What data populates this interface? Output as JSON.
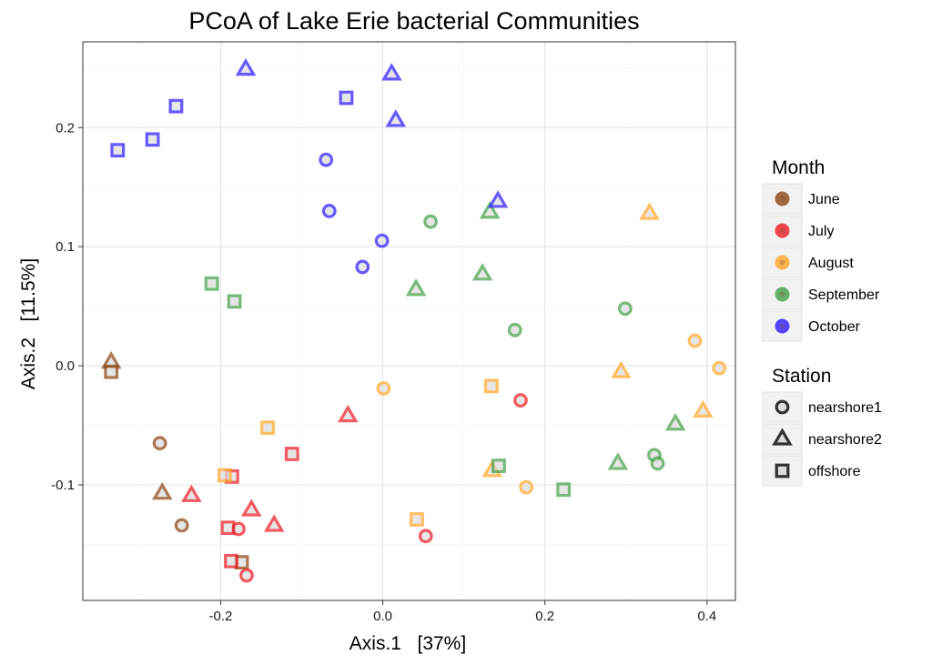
{
  "chart_data": {
    "type": "scatter",
    "title": "PCoA of Lake Erie bacterial Communities",
    "xlabel": "Axis.1   [37%]",
    "ylabel": "Axis.2   [11.5%]",
    "xlim": [
      -0.37,
      0.435
    ],
    "ylim": [
      -0.197,
      0.272
    ],
    "xticks": [
      -0.2,
      0.0,
      0.2,
      0.4
    ],
    "xtick_labels": [
      "-0.2",
      "0.0",
      "0.2",
      "0.4"
    ],
    "yticks": [
      -0.1,
      0.0,
      0.1,
      0.2
    ],
    "yticks_labels": [
      "-0.1",
      "0.0",
      "0.1",
      "0.2"
    ],
    "grid": true,
    "legend_placement": "right",
    "legends": [
      {
        "title": "Month",
        "items": [
          {
            "label": "June",
            "color": "#8B4513"
          },
          {
            "label": "July",
            "color": "#ED1C24"
          },
          {
            "label": "August",
            "color": "#FFA726"
          },
          {
            "label": "September",
            "color": "#43A047"
          },
          {
            "label": "October",
            "color": "#2A1CFF"
          }
        ]
      },
      {
        "title": "Station",
        "items": [
          {
            "label": "nearshore1",
            "shape": "circle"
          },
          {
            "label": "nearshore2",
            "shape": "triangle"
          },
          {
            "label": "offshore",
            "shape": "square"
          }
        ]
      }
    ],
    "points": [
      {
        "month": "June",
        "station": "nearshore1",
        "x": -0.275,
        "y": -0.065
      },
      {
        "month": "June",
        "station": "nearshore1",
        "x": -0.248,
        "y": -0.134
      },
      {
        "month": "June",
        "station": "nearshore2",
        "x": -0.335,
        "y": 0.003
      },
      {
        "month": "June",
        "station": "nearshore2",
        "x": -0.272,
        "y": -0.107
      },
      {
        "month": "June",
        "station": "offshore",
        "x": -0.335,
        "y": -0.005
      },
      {
        "month": "June",
        "station": "offshore",
        "x": -0.174,
        "y": -0.165
      },
      {
        "month": "July",
        "station": "nearshore1",
        "x": -0.178,
        "y": -0.137
      },
      {
        "month": "July",
        "station": "nearshore1",
        "x": -0.168,
        "y": -0.176
      },
      {
        "month": "July",
        "station": "nearshore1",
        "x": 0.053,
        "y": -0.143
      },
      {
        "month": "July",
        "station": "nearshore1",
        "x": 0.17,
        "y": -0.029
      },
      {
        "month": "July",
        "station": "nearshore2",
        "x": -0.236,
        "y": -0.109
      },
      {
        "month": "July",
        "station": "nearshore2",
        "x": -0.162,
        "y": -0.121
      },
      {
        "month": "July",
        "station": "nearshore2",
        "x": -0.134,
        "y": -0.134
      },
      {
        "month": "July",
        "station": "nearshore2",
        "x": -0.043,
        "y": -0.042
      },
      {
        "month": "July",
        "station": "offshore",
        "x": -0.112,
        "y": -0.074
      },
      {
        "month": "July",
        "station": "offshore",
        "x": -0.186,
        "y": -0.093
      },
      {
        "month": "July",
        "station": "offshore",
        "x": -0.191,
        "y": -0.136
      },
      {
        "month": "July",
        "station": "offshore",
        "x": -0.187,
        "y": -0.164
      },
      {
        "month": "August",
        "station": "nearshore1",
        "x": 0.001,
        "y": -0.019
      },
      {
        "month": "August",
        "station": "nearshore1",
        "x": 0.177,
        "y": -0.102
      },
      {
        "month": "August",
        "station": "nearshore1",
        "x": 0.385,
        "y": 0.021
      },
      {
        "month": "August",
        "station": "nearshore1",
        "x": 0.415,
        "y": -0.002
      },
      {
        "month": "August",
        "station": "nearshore2",
        "x": 0.329,
        "y": 0.128
      },
      {
        "month": "August",
        "station": "nearshore2",
        "x": 0.294,
        "y": -0.005
      },
      {
        "month": "August",
        "station": "nearshore2",
        "x": 0.395,
        "y": -0.038
      },
      {
        "month": "August",
        "station": "nearshore2",
        "x": 0.135,
        "y": -0.088
      },
      {
        "month": "August",
        "station": "offshore",
        "x": -0.142,
        "y": -0.052
      },
      {
        "month": "August",
        "station": "offshore",
        "x": -0.195,
        "y": -0.092
      },
      {
        "month": "August",
        "station": "offshore",
        "x": 0.042,
        "y": -0.129
      },
      {
        "month": "August",
        "station": "offshore",
        "x": 0.134,
        "y": -0.017
      },
      {
        "month": "September",
        "station": "nearshore1",
        "x": 0.059,
        "y": 0.121
      },
      {
        "month": "September",
        "station": "nearshore1",
        "x": 0.163,
        "y": 0.03
      },
      {
        "month": "September",
        "station": "nearshore1",
        "x": 0.299,
        "y": 0.048
      },
      {
        "month": "September",
        "station": "nearshore1",
        "x": 0.335,
        "y": -0.075
      },
      {
        "month": "September",
        "station": "nearshore1",
        "x": 0.339,
        "y": -0.082
      },
      {
        "month": "September",
        "station": "nearshore2",
        "x": 0.132,
        "y": 0.129
      },
      {
        "month": "September",
        "station": "nearshore2",
        "x": 0.123,
        "y": 0.077
      },
      {
        "month": "September",
        "station": "nearshore2",
        "x": 0.041,
        "y": 0.064
      },
      {
        "month": "September",
        "station": "nearshore2",
        "x": 0.361,
        "y": -0.049
      },
      {
        "month": "September",
        "station": "nearshore2",
        "x": 0.29,
        "y": -0.082
      },
      {
        "month": "September",
        "station": "offshore",
        "x": -0.211,
        "y": 0.069
      },
      {
        "month": "September",
        "station": "offshore",
        "x": -0.183,
        "y": 0.054
      },
      {
        "month": "September",
        "station": "offshore",
        "x": 0.143,
        "y": -0.084
      },
      {
        "month": "September",
        "station": "offshore",
        "x": 0.223,
        "y": -0.104
      },
      {
        "month": "October",
        "station": "nearshore1",
        "x": -0.07,
        "y": 0.173
      },
      {
        "month": "October",
        "station": "nearshore1",
        "x": -0.066,
        "y": 0.13
      },
      {
        "month": "October",
        "station": "nearshore1",
        "x": -0.001,
        "y": 0.105
      },
      {
        "month": "October",
        "station": "nearshore1",
        "x": -0.025,
        "y": 0.083
      },
      {
        "month": "October",
        "station": "nearshore2",
        "x": -0.169,
        "y": 0.249
      },
      {
        "month": "October",
        "station": "nearshore2",
        "x": 0.011,
        "y": 0.245
      },
      {
        "month": "October",
        "station": "nearshore2",
        "x": 0.016,
        "y": 0.206
      },
      {
        "month": "October",
        "station": "nearshore2",
        "x": 0.142,
        "y": 0.138
      },
      {
        "month": "October",
        "station": "offshore",
        "x": -0.327,
        "y": 0.181
      },
      {
        "month": "October",
        "station": "offshore",
        "x": -0.284,
        "y": 0.19
      },
      {
        "month": "October",
        "station": "offshore",
        "x": -0.255,
        "y": 0.218
      },
      {
        "month": "October",
        "station": "offshore",
        "x": -0.045,
        "y": 0.225
      }
    ]
  }
}
